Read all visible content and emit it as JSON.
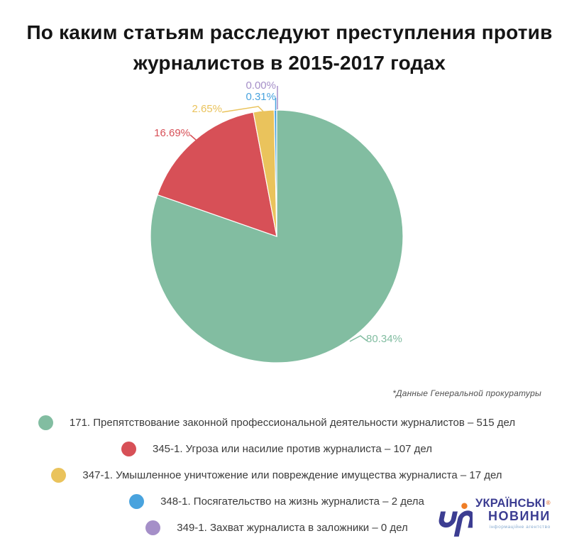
{
  "header": {
    "line1": "По каким статьям расследуют преступления против",
    "line2": "журналистов в 2015-2017 годах"
  },
  "chart_data": {
    "type": "pie",
    "title": "По каким статьям расследуют преступления против журналистов в 2015-2017 годах",
    "direction": "clockwise",
    "start_angle": "12 o'clock",
    "legend_position": "bottom",
    "unit": "дел",
    "series": [
      {
        "article": "171",
        "label": "171. Препятствование законной профессиональной деятельности журналистов",
        "cases": 515,
        "percent": 80.34,
        "percent_label": "80.34%",
        "color": "#82bda1"
      },
      {
        "article": "345-1",
        "label": "345-1. Угроза или насилие против журналиста",
        "cases": 107,
        "percent": 16.69,
        "percent_label": "16.69%",
        "color": "#d75057"
      },
      {
        "article": "347-1",
        "label": "347-1. Умышленное уничтожение или повреждение имущества журналиста",
        "cases": 17,
        "percent": 2.65,
        "percent_label": "2.65%",
        "color": "#eac35c"
      },
      {
        "article": "348-1",
        "label": "348-1. Посягательство на жизнь журналиста",
        "cases": 2,
        "percent": 0.31,
        "percent_label": "0.31%",
        "color": "#49a3de"
      },
      {
        "article": "349-1",
        "label": "349-1. Захват журналиста в заложники",
        "cases": 0,
        "percent": 0.0,
        "percent_label": "0.00%",
        "color": "#a58fc8"
      }
    ]
  },
  "source_note": "*Данные Генеральной прокуратуры",
  "legend": {
    "items": [
      {
        "text": "171. Препятствование законной профессиональной деятельности журналистов – 515 дел",
        "color": "#82bda1"
      },
      {
        "text": "345-1. Угроза или насилие против журналиста – 107 дел",
        "color": "#d75057"
      },
      {
        "text": "347-1. Умышленное уничтожение или повреждение имущества журналиста – 17 дел",
        "color": "#eac35c"
      },
      {
        "text": "348-1. Посягательство на жизнь журналиста – 2 дела",
        "color": "#49a3de"
      },
      {
        "text": "349-1. Захват журналиста в заложники – 0 дел",
        "color": "#a58fc8"
      }
    ]
  },
  "logo": {
    "brand_line1": "УКРАЇНСЬКІ",
    "brand_line2": "НОВИНИ",
    "registered_mark": "®",
    "tagline": "інформаційне агентство",
    "brand_color": "#3c3d92",
    "dot_color": "#ef7d26"
  }
}
